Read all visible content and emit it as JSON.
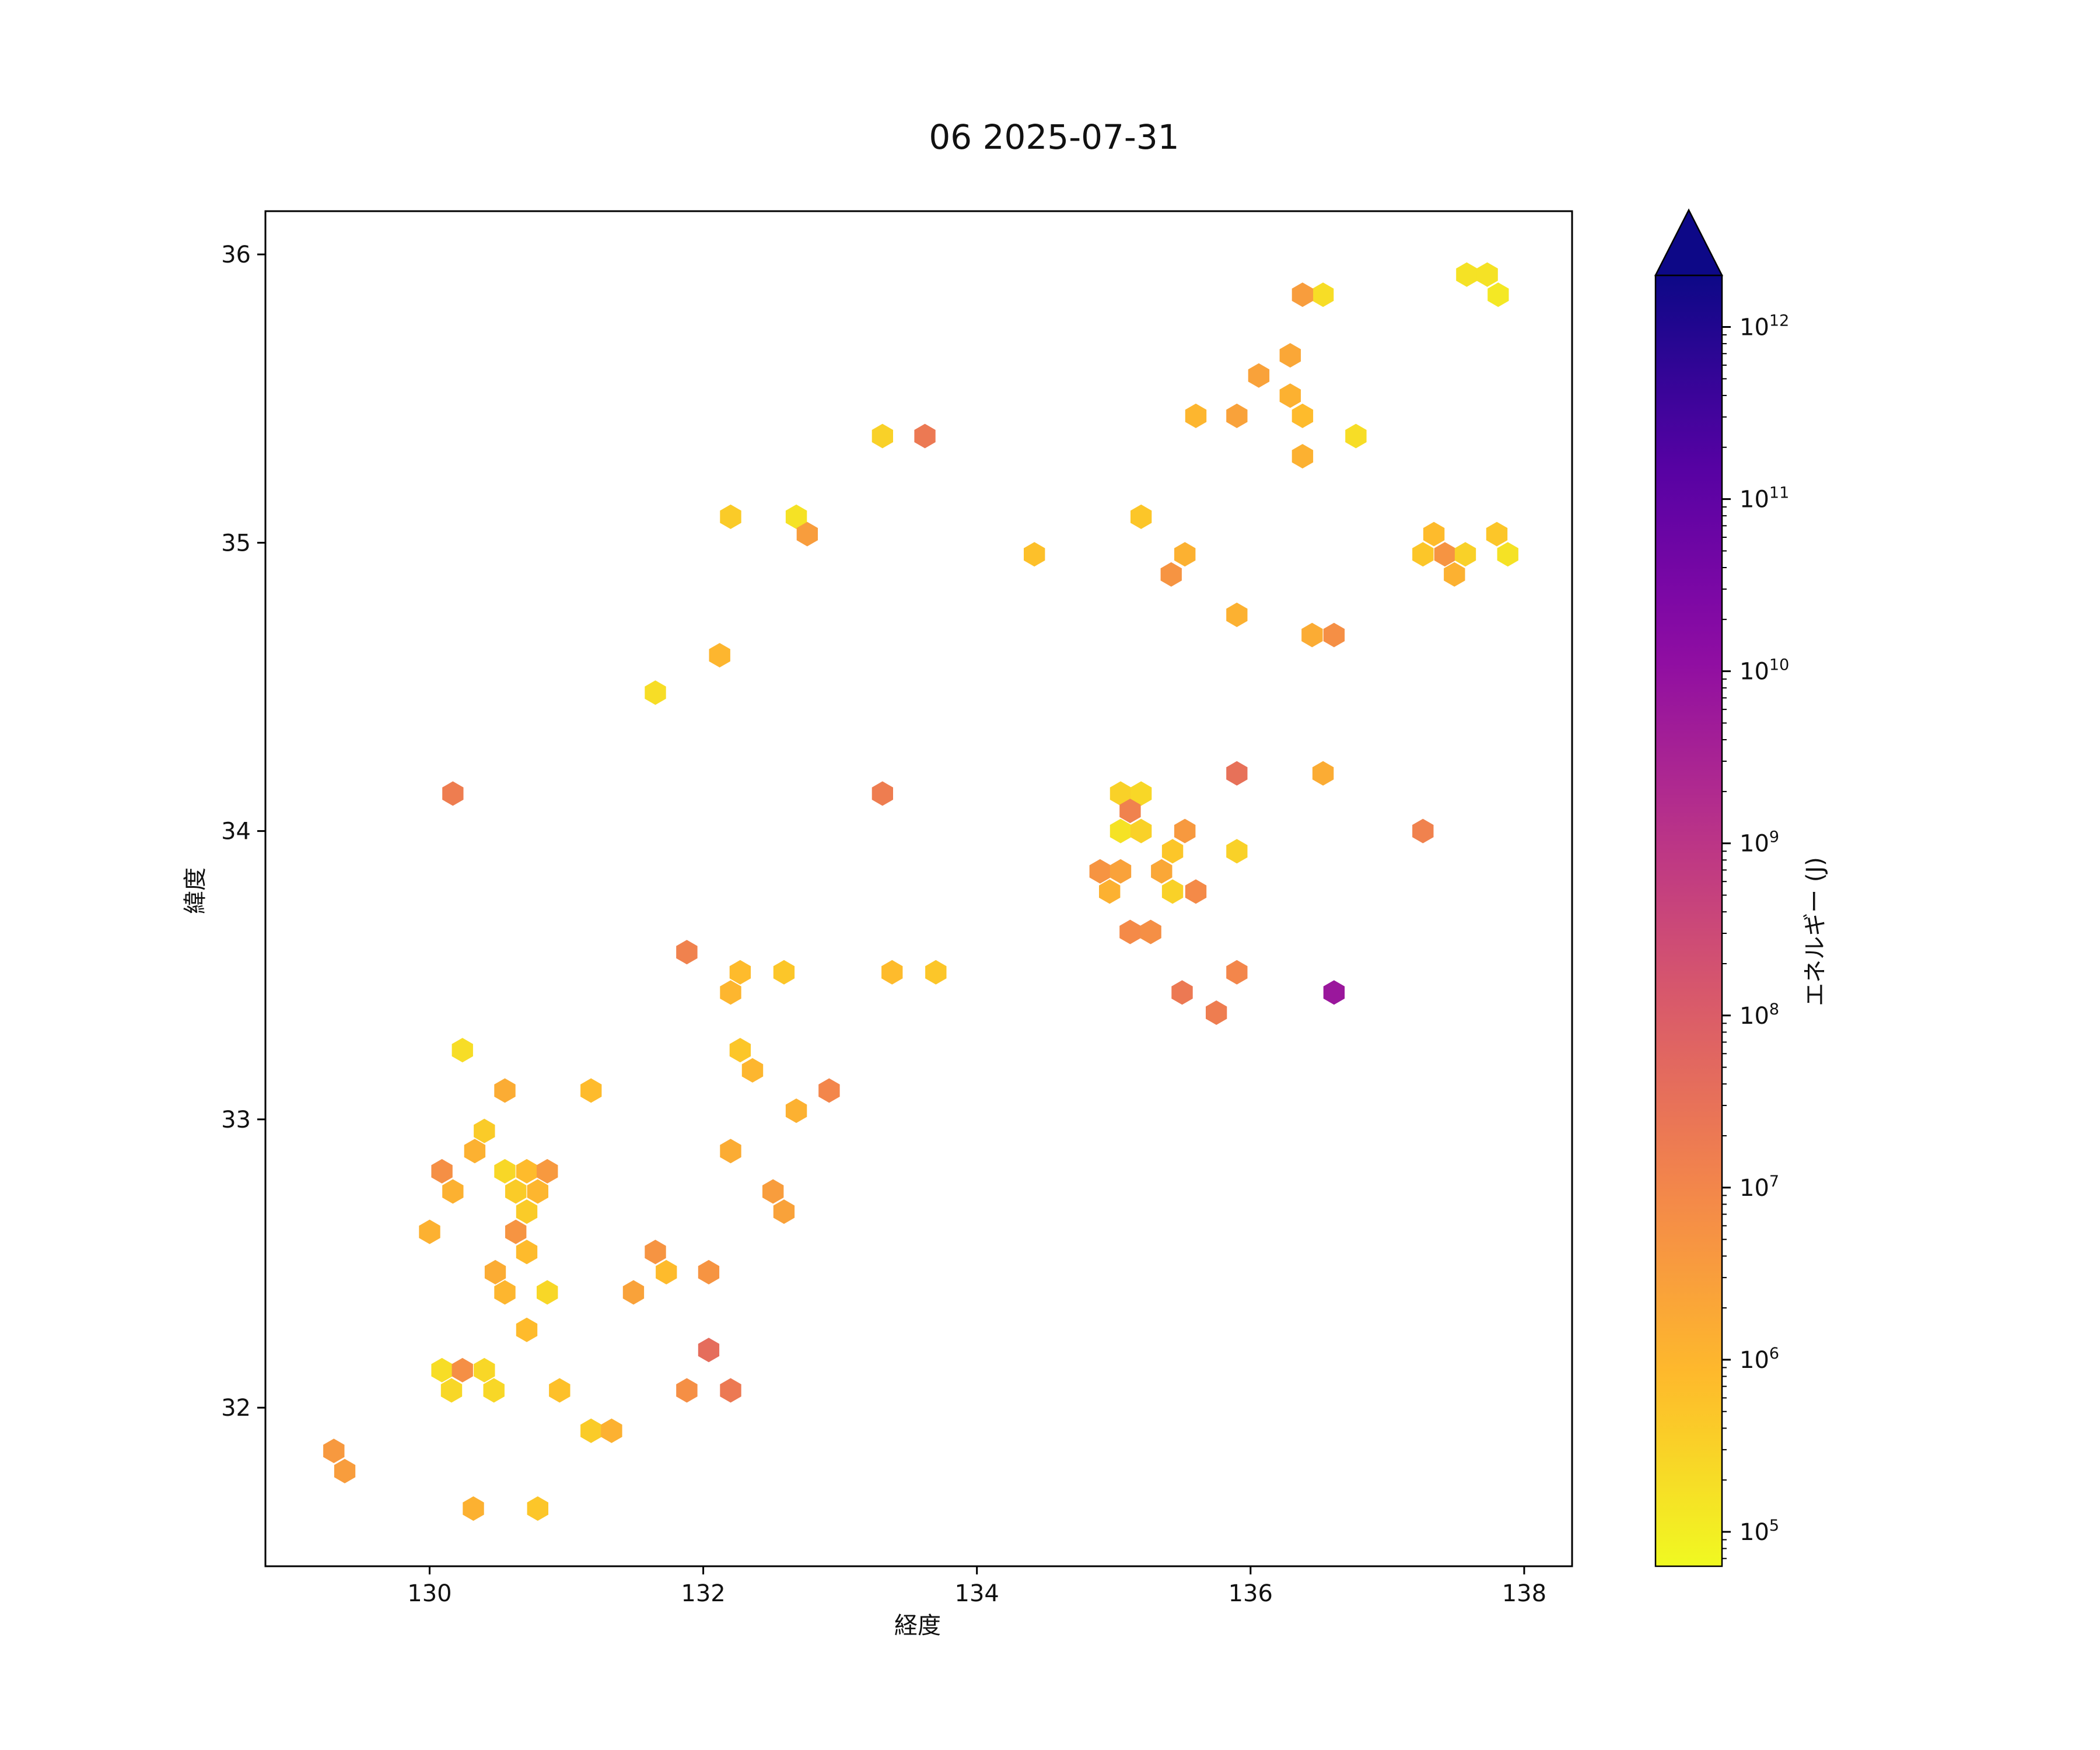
{
  "chart_data": {
    "type": "hexbin",
    "title": "06 2025-07-31",
    "xlabel": "経度",
    "ylabel": "緯度",
    "xlim": [
      128.8,
      138.35
    ],
    "ylim": [
      31.45,
      36.15
    ],
    "xticks": [
      130,
      132,
      134,
      136,
      138
    ],
    "yticks": [
      32,
      33,
      34,
      35,
      36
    ],
    "grid": false,
    "colorbar": {
      "label": "エネルギー (J)",
      "scale": "log",
      "colormap": "plasma_r",
      "range_exp": [
        4.8,
        12.3
      ],
      "extend": "max",
      "ticks": [
        {
          "base": "10",
          "exp": "5",
          "value": 5
        },
        {
          "base": "10",
          "exp": "6",
          "value": 6
        },
        {
          "base": "10",
          "exp": "7",
          "value": 7
        },
        {
          "base": "10",
          "exp": "8",
          "value": 8
        },
        {
          "base": "10",
          "exp": "9",
          "value": 9
        },
        {
          "base": "10",
          "exp": "10",
          "value": 10
        },
        {
          "base": "10",
          "exp": "11",
          "value": 11
        },
        {
          "base": "10",
          "exp": "12",
          "value": 12
        }
      ]
    },
    "points": [
      [
        137.58,
        35.93,
        5.2
      ],
      [
        137.73,
        35.93,
        5.2
      ],
      [
        137.81,
        35.86,
        5.1
      ],
      [
        136.53,
        35.86,
        5.3
      ],
      [
        136.38,
        35.86,
        6.5
      ],
      [
        136.29,
        35.65,
        6.3
      ],
      [
        136.06,
        35.58,
        6.4
      ],
      [
        136.29,
        35.51,
        6.1
      ],
      [
        136.38,
        35.44,
        5.9
      ],
      [
        135.6,
        35.44,
        6.0
      ],
      [
        135.9,
        35.44,
        6.4
      ],
      [
        136.38,
        35.3,
        6.1
      ],
      [
        136.77,
        35.37,
        5.3
      ],
      [
        133.31,
        35.37,
        5.5
      ],
      [
        133.62,
        35.37,
        7.3
      ],
      [
        132.2,
        35.09,
        5.6
      ],
      [
        132.68,
        35.09,
        5.2
      ],
      [
        132.76,
        35.03,
        6.5
      ],
      [
        135.2,
        35.09,
        5.7
      ],
      [
        134.42,
        34.96,
        5.8
      ],
      [
        135.52,
        34.96,
        6.1
      ],
      [
        135.42,
        34.89,
        6.7
      ],
      [
        137.26,
        34.96,
        5.7
      ],
      [
        137.34,
        35.03,
        5.9
      ],
      [
        137.42,
        34.96,
        6.7
      ],
      [
        137.49,
        34.89,
        6.1
      ],
      [
        137.57,
        34.96,
        5.5
      ],
      [
        137.8,
        35.03,
        5.7
      ],
      [
        137.88,
        34.96,
        5.2
      ],
      [
        135.9,
        34.75,
        6.1
      ],
      [
        136.45,
        34.68,
        6.2
      ],
      [
        136.61,
        34.68,
        6.8
      ],
      [
        132.12,
        34.61,
        6.0
      ],
      [
        131.65,
        34.48,
        5.3
      ],
      [
        130.17,
        34.13,
        7.2
      ],
      [
        133.31,
        34.13,
        7.2
      ],
      [
        135.9,
        34.2,
        7.5
      ],
      [
        136.53,
        34.2,
        6.2
      ],
      [
        137.26,
        34.0,
        7.1
      ],
      [
        135.05,
        34.13,
        5.5
      ],
      [
        135.2,
        34.13,
        5.4
      ],
      [
        135.12,
        34.07,
        7.1
      ],
      [
        135.05,
        34.0,
        5.2
      ],
      [
        135.2,
        34.0,
        5.5
      ],
      [
        135.52,
        34.0,
        6.6
      ],
      [
        135.43,
        33.93,
        5.7
      ],
      [
        135.9,
        33.93,
        5.5
      ],
      [
        134.9,
        33.86,
        6.7
      ],
      [
        135.05,
        33.86,
        6.4
      ],
      [
        135.35,
        33.86,
        6.3
      ],
      [
        134.97,
        33.79,
        6.1
      ],
      [
        135.43,
        33.79,
        5.5
      ],
      [
        135.6,
        33.79,
        6.9
      ],
      [
        135.12,
        33.65,
        6.9
      ],
      [
        135.27,
        33.65,
        6.8
      ],
      [
        131.88,
        33.58,
        7.1
      ],
      [
        132.27,
        33.51,
        5.9
      ],
      [
        132.59,
        33.51,
        5.7
      ],
      [
        133.38,
        33.51,
        5.9
      ],
      [
        133.7,
        33.51,
        5.7
      ],
      [
        135.9,
        33.51,
        7.0
      ],
      [
        132.2,
        33.44,
        6.0
      ],
      [
        135.5,
        33.44,
        7.3
      ],
      [
        135.75,
        33.37,
        7.2
      ],
      [
        136.61,
        33.44,
        9.8
      ],
      [
        130.24,
        33.24,
        5.3
      ],
      [
        132.27,
        33.24,
        5.7
      ],
      [
        132.36,
        33.17,
        6.0
      ],
      [
        130.55,
        33.1,
        6.2
      ],
      [
        131.18,
        33.1,
        5.9
      ],
      [
        132.92,
        33.1,
        7.0
      ],
      [
        132.68,
        33.03,
        6.1
      ],
      [
        130.4,
        32.96,
        5.6
      ],
      [
        130.33,
        32.89,
        6.1
      ],
      [
        132.2,
        32.89,
        6.2
      ],
      [
        130.09,
        32.82,
        6.8
      ],
      [
        130.55,
        32.82,
        5.4
      ],
      [
        130.71,
        32.82,
        5.9
      ],
      [
        130.86,
        32.82,
        6.6
      ],
      [
        130.17,
        32.75,
        6.1
      ],
      [
        130.63,
        32.75,
        5.6
      ],
      [
        130.79,
        32.75,
        6.0
      ],
      [
        132.51,
        32.75,
        6.5
      ],
      [
        130.71,
        32.68,
        5.6
      ],
      [
        132.59,
        32.68,
        6.4
      ],
      [
        130.0,
        32.61,
        6.1
      ],
      [
        130.63,
        32.61,
        6.7
      ],
      [
        130.71,
        32.54,
        5.9
      ],
      [
        131.65,
        32.54,
        6.7
      ],
      [
        130.48,
        32.47,
        6.2
      ],
      [
        131.73,
        32.47,
        5.9
      ],
      [
        132.04,
        32.47,
        6.7
      ],
      [
        130.55,
        32.4,
        6.0
      ],
      [
        130.86,
        32.4,
        5.4
      ],
      [
        131.49,
        32.4,
        6.4
      ],
      [
        130.71,
        32.27,
        5.9
      ],
      [
        132.04,
        32.2,
        7.6
      ],
      [
        130.09,
        32.13,
        5.3
      ],
      [
        130.24,
        32.13,
        6.8
      ],
      [
        130.4,
        32.13,
        5.4
      ],
      [
        130.16,
        32.06,
        5.4
      ],
      [
        130.47,
        32.06,
        5.4
      ],
      [
        130.95,
        32.06,
        5.8
      ],
      [
        131.88,
        32.06,
        6.8
      ],
      [
        132.2,
        32.06,
        7.3
      ],
      [
        131.18,
        31.92,
        5.6
      ],
      [
        131.33,
        31.92,
        6.1
      ],
      [
        129.3,
        31.85,
        6.6
      ],
      [
        129.38,
        31.78,
        6.5
      ],
      [
        130.32,
        31.65,
        6.1
      ],
      [
        130.79,
        31.65,
        5.7
      ]
    ]
  }
}
